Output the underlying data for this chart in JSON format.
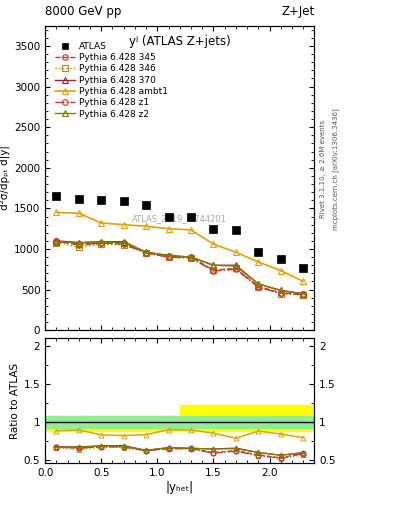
{
  "title_top": "8000 GeV pp",
  "title_right": "Z+Jet",
  "plot_label": "yʲ (ATLAS Z+jets)",
  "watermark": "ATLAS_2019_I1744201",
  "ylabel_main": "d²σ/dpₚₜ d|y|",
  "ylabel_ratio": "Ratio to ATLAS",
  "xlabel": "|yₕₑₜ|",
  "right_label1": "Rivet 3.1.10, ≥ 2.6M events",
  "right_label2": "mcplots.cern.ch [arXiv:1306.3436]",
  "x_atlas": [
    0.1,
    0.3,
    0.5,
    0.7,
    0.9,
    1.1,
    1.3,
    1.5,
    1.7,
    1.9,
    2.1,
    2.3
  ],
  "y_atlas": [
    1650,
    1620,
    1600,
    1595,
    1545,
    1400,
    1390,
    1250,
    1230,
    960,
    880,
    760
  ],
  "x_mc": [
    0.1,
    0.3,
    0.5,
    0.7,
    0.9,
    1.1,
    1.3,
    1.5,
    1.7,
    1.9,
    2.1,
    2.3
  ],
  "y_345": [
    1095,
    1050,
    1070,
    1070,
    950,
    910,
    900,
    740,
    760,
    540,
    460,
    445
  ],
  "y_346": [
    1080,
    1020,
    1060,
    1050,
    950,
    900,
    890,
    740,
    760,
    530,
    450,
    430
  ],
  "y_370": [
    1100,
    1080,
    1090,
    1090,
    960,
    920,
    900,
    800,
    800,
    570,
    490,
    450
  ],
  "y_ambt1": [
    1450,
    1440,
    1320,
    1300,
    1280,
    1250,
    1235,
    1060,
    960,
    840,
    735,
    600
  ],
  "y_z1": [
    1095,
    1060,
    1070,
    1060,
    950,
    900,
    890,
    730,
    750,
    530,
    455,
    440
  ],
  "y_z2": [
    1090,
    1075,
    1085,
    1080,
    960,
    920,
    900,
    800,
    790,
    570,
    490,
    448
  ],
  "color_345": "#c0392b",
  "color_346": "#b8860b",
  "color_370": "#a0203a",
  "color_ambt1": "#e8a000",
  "color_z1": "#c0392b",
  "color_z2": "#808000",
  "ylim_main": [
    0,
    3750
  ],
  "ylim_ratio": [
    0.45,
    2.1
  ],
  "xlim": [
    0.0,
    2.4
  ],
  "yticks_main": [
    0,
    500,
    1000,
    1500,
    2000,
    2500,
    3000,
    3500
  ],
  "yticks_ratio": [
    0.5,
    1.0,
    1.5,
    2.0
  ],
  "xticks": [
    0.0,
    0.5,
    1.0,
    1.5,
    2.0
  ]
}
